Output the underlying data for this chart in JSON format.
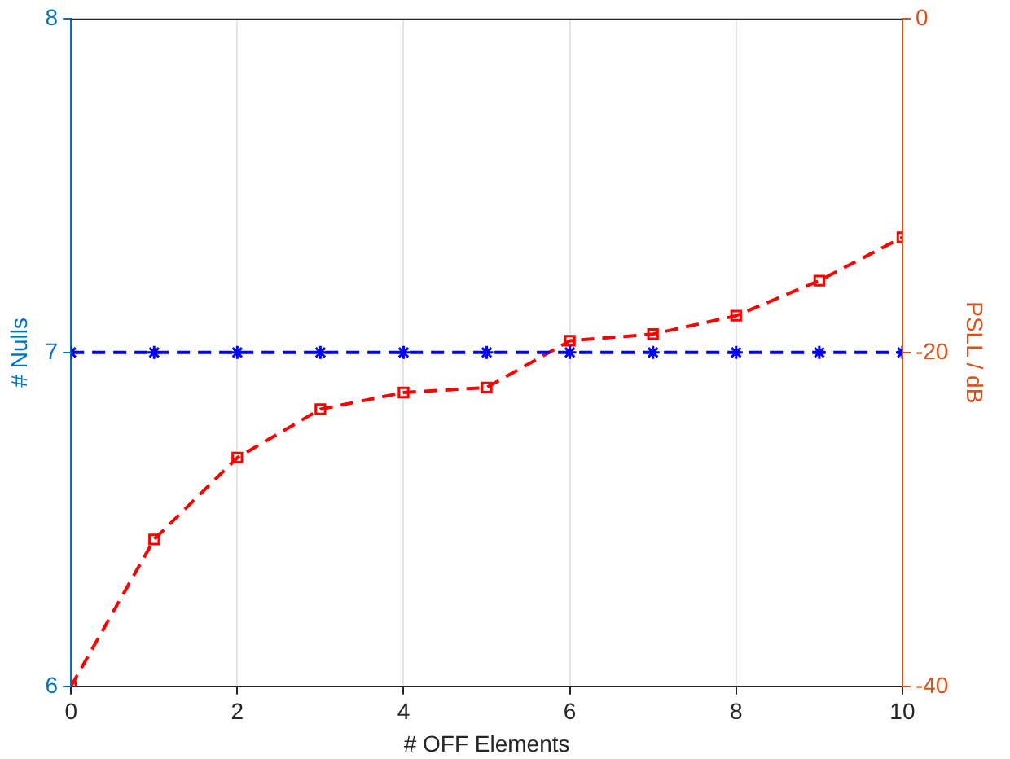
{
  "chart_data": {
    "type": "line",
    "xlabel": "# OFF Elements",
    "ylabel": "# Nulls",
    "y2label": "PSLL / dB",
    "x": [
      0,
      1,
      2,
      3,
      4,
      5,
      6,
      7,
      8,
      9,
      10
    ],
    "xlim": [
      0,
      10
    ],
    "xticks": [
      0,
      2,
      4,
      6,
      8,
      10
    ],
    "ylim": [
      6,
      8
    ],
    "yticks": [
      6,
      7,
      8
    ],
    "y2lim": [
      -40,
      0
    ],
    "y2ticks": [
      -40,
      -20,
      0
    ],
    "grid": "x",
    "legend": false,
    "line_style": "dashed",
    "series": [
      {
        "color": "#0000ff",
        "marker": "cross",
        "values": [
          7,
          7,
          7,
          7,
          7,
          7,
          7,
          7,
          7,
          7,
          7
        ]
      },
      {
        "color": "#ff0000",
        "marker": "square",
        "axis": "y2",
        "values": [
          -40,
          -31.2,
          -26.3,
          -23.4,
          -22.4,
          -22.1,
          -19.3,
          -18.9,
          -17.8,
          -15.7,
          -13.1
        ]
      }
    ]
  }
}
